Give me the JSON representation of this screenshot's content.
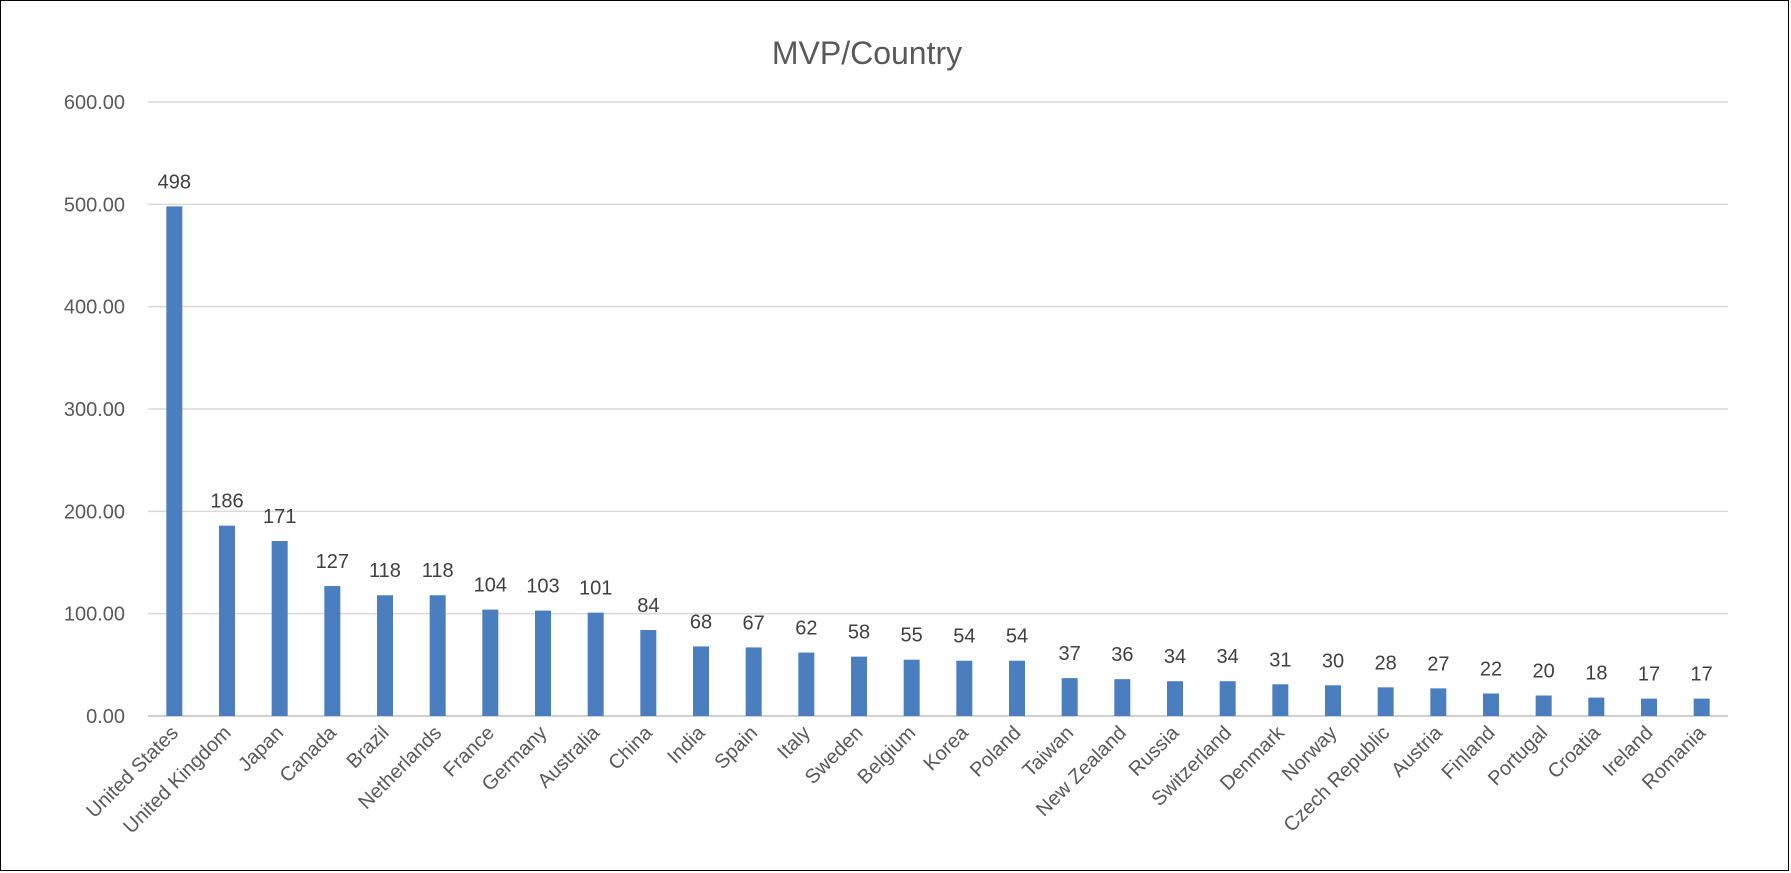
{
  "chart_data": {
    "type": "bar",
    "title": "MVP/Country",
    "xlabel": "",
    "ylabel": "",
    "ylim": [
      0,
      600
    ],
    "yticks": [
      "0.00",
      "100.00",
      "200.00",
      "300.00",
      "400.00",
      "500.00",
      "600.00"
    ],
    "grid": true,
    "legend": "none",
    "bar_color": "#4a7ebf",
    "categories": [
      "United States",
      "United Kingdom",
      "Japan",
      "Canada",
      "Brazil",
      "Netherlands",
      "France",
      "Germany",
      "Australia",
      "China",
      "India",
      "Spain",
      "Italy",
      "Sweden",
      "Belgium",
      "Korea",
      "Poland",
      "Taiwan",
      "New Zealand",
      "Russia",
      "Switzerland",
      "Denmark",
      "Norway",
      "Czech Republic",
      "Austria",
      "Finland",
      "Portugal",
      "Croatia",
      "Ireland",
      "Romania"
    ],
    "values": [
      498,
      186,
      171,
      127,
      118,
      118,
      104,
      103,
      101,
      84,
      68,
      67,
      62,
      58,
      55,
      54,
      54,
      37,
      36,
      34,
      34,
      31,
      30,
      28,
      27,
      22,
      20,
      18,
      17,
      17
    ]
  }
}
